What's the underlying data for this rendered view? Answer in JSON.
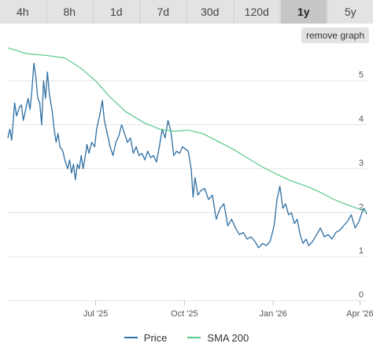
{
  "timeframes": [
    "4h",
    "8h",
    "1d",
    "7d",
    "30d",
    "120d",
    "1y",
    "5y"
  ],
  "active_timeframe": "1y",
  "remove_graph_label": "remove graph",
  "colors": {
    "price": "#2e6fa3",
    "sma": "#59c98b",
    "grid": "#e6e6e6",
    "tab_active": "#c6c6c6"
  },
  "chart_data": {
    "type": "line",
    "x_ticks": [
      {
        "date": "2025-07-01",
        "label": "Jul '25"
      },
      {
        "date": "2025-10-01",
        "label": "Oct '25"
      },
      {
        "date": "2026-01-01",
        "label": "Jan '26"
      },
      {
        "date": "2026-04-01",
        "label": "Apr '26"
      }
    ],
    "xlim": [
      "2025-04-01",
      "2026-04-08"
    ],
    "y_ticks": [
      0,
      1,
      2,
      3,
      4,
      5
    ],
    "ylim": [
      0,
      5.8
    ],
    "grid": true,
    "legend_position": "bottom",
    "series": [
      {
        "name": "Price",
        "points": [
          [
            "2025-04-01",
            3.7
          ],
          [
            "2025-04-03",
            3.9
          ],
          [
            "2025-04-05",
            3.65
          ],
          [
            "2025-04-08",
            4.5
          ],
          [
            "2025-04-10",
            4.2
          ],
          [
            "2025-04-13",
            4.4
          ],
          [
            "2025-04-15",
            4.45
          ],
          [
            "2025-04-17",
            4.1
          ],
          [
            "2025-04-20",
            4.4
          ],
          [
            "2025-04-22",
            4.6
          ],
          [
            "2025-04-24",
            4.35
          ],
          [
            "2025-04-26",
            4.8
          ],
          [
            "2025-04-28",
            5.4
          ],
          [
            "2025-04-30",
            5.1
          ],
          [
            "2025-05-02",
            4.6
          ],
          [
            "2025-05-04",
            4.5
          ],
          [
            "2025-05-06",
            4.0
          ],
          [
            "2025-05-08",
            5.0
          ],
          [
            "2025-05-10",
            4.6
          ],
          [
            "2025-05-12",
            5.2
          ],
          [
            "2025-05-14",
            4.7
          ],
          [
            "2025-05-17",
            4.3
          ],
          [
            "2025-05-19",
            3.9
          ],
          [
            "2025-05-21",
            3.6
          ],
          [
            "2025-05-23",
            3.8
          ],
          [
            "2025-05-25",
            3.5
          ],
          [
            "2025-05-28",
            3.4
          ],
          [
            "2025-05-30",
            3.2
          ],
          [
            "2025-06-02",
            3.0
          ],
          [
            "2025-06-04",
            3.2
          ],
          [
            "2025-06-06",
            2.9
          ],
          [
            "2025-06-08",
            3.1
          ],
          [
            "2025-06-10",
            2.75
          ],
          [
            "2025-06-12",
            3.1
          ],
          [
            "2025-06-14",
            3.0
          ],
          [
            "2025-06-16",
            3.3
          ],
          [
            "2025-06-18",
            3.0
          ],
          [
            "2025-06-20",
            3.25
          ],
          [
            "2025-06-22",
            3.55
          ],
          [
            "2025-06-24",
            3.35
          ],
          [
            "2025-06-27",
            3.6
          ],
          [
            "2025-06-30",
            3.5
          ],
          [
            "2025-07-02",
            3.9
          ],
          [
            "2025-07-05",
            4.2
          ],
          [
            "2025-07-08",
            4.55
          ],
          [
            "2025-07-10",
            4.1
          ],
          [
            "2025-07-13",
            3.8
          ],
          [
            "2025-07-16",
            3.5
          ],
          [
            "2025-07-19",
            3.3
          ],
          [
            "2025-07-22",
            3.6
          ],
          [
            "2025-07-25",
            3.75
          ],
          [
            "2025-07-28",
            4.0
          ],
          [
            "2025-07-31",
            3.8
          ],
          [
            "2025-08-03",
            3.6
          ],
          [
            "2025-08-06",
            3.7
          ],
          [
            "2025-08-09",
            3.35
          ],
          [
            "2025-08-12",
            3.5
          ],
          [
            "2025-08-15",
            3.3
          ],
          [
            "2025-08-18",
            3.35
          ],
          [
            "2025-08-21",
            3.2
          ],
          [
            "2025-08-24",
            3.4
          ],
          [
            "2025-08-27",
            3.25
          ],
          [
            "2025-08-30",
            3.3
          ],
          [
            "2025-09-02",
            3.15
          ],
          [
            "2025-09-05",
            3.5
          ],
          [
            "2025-09-08",
            3.9
          ],
          [
            "2025-09-11",
            3.7
          ],
          [
            "2025-09-14",
            4.1
          ],
          [
            "2025-09-17",
            3.85
          ],
          [
            "2025-09-20",
            3.3
          ],
          [
            "2025-09-23",
            3.4
          ],
          [
            "2025-09-26",
            3.35
          ],
          [
            "2025-09-29",
            3.5
          ],
          [
            "2025-10-02",
            3.45
          ],
          [
            "2025-10-05",
            3.4
          ],
          [
            "2025-10-08",
            3.0
          ],
          [
            "2025-10-10",
            2.35
          ],
          [
            "2025-10-12",
            2.8
          ],
          [
            "2025-10-15",
            2.4
          ],
          [
            "2025-10-18",
            2.5
          ],
          [
            "2025-10-22",
            2.55
          ],
          [
            "2025-10-26",
            2.3
          ],
          [
            "2025-10-30",
            2.4
          ],
          [
            "2025-11-03",
            1.85
          ],
          [
            "2025-11-07",
            2.1
          ],
          [
            "2025-11-11",
            2.2
          ],
          [
            "2025-11-15",
            1.7
          ],
          [
            "2025-11-19",
            1.85
          ],
          [
            "2025-11-23",
            1.65
          ],
          [
            "2025-11-27",
            1.5
          ],
          [
            "2025-12-01",
            1.55
          ],
          [
            "2025-12-05",
            1.4
          ],
          [
            "2025-12-09",
            1.45
          ],
          [
            "2025-12-13",
            1.35
          ],
          [
            "2025-12-17",
            1.2
          ],
          [
            "2025-12-21",
            1.3
          ],
          [
            "2025-12-25",
            1.25
          ],
          [
            "2025-12-29",
            1.35
          ],
          [
            "2026-01-02",
            1.7
          ],
          [
            "2026-01-05",
            2.3
          ],
          [
            "2026-01-08",
            2.6
          ],
          [
            "2026-01-11",
            2.1
          ],
          [
            "2026-01-14",
            2.2
          ],
          [
            "2026-01-17",
            1.95
          ],
          [
            "2026-01-20",
            2.0
          ],
          [
            "2026-01-23",
            1.75
          ],
          [
            "2026-01-26",
            1.85
          ],
          [
            "2026-01-29",
            1.5
          ],
          [
            "2026-02-01",
            1.3
          ],
          [
            "2026-02-04",
            1.4
          ],
          [
            "2026-02-07",
            1.25
          ],
          [
            "2026-02-11",
            1.35
          ],
          [
            "2026-02-15",
            1.5
          ],
          [
            "2026-02-19",
            1.65
          ],
          [
            "2026-02-23",
            1.45
          ],
          [
            "2026-02-27",
            1.5
          ],
          [
            "2026-03-03",
            1.4
          ],
          [
            "2026-03-07",
            1.55
          ],
          [
            "2026-03-11",
            1.6
          ],
          [
            "2026-03-15",
            1.7
          ],
          [
            "2026-03-19",
            1.8
          ],
          [
            "2026-03-23",
            1.95
          ],
          [
            "2026-03-27",
            1.65
          ],
          [
            "2026-03-31",
            1.8
          ],
          [
            "2026-04-03",
            2.0
          ],
          [
            "2026-04-05",
            2.1
          ],
          [
            "2026-04-08",
            1.97
          ]
        ]
      },
      {
        "name": "SMA 200",
        "points": [
          [
            "2025-04-01",
            5.75
          ],
          [
            "2025-04-20",
            5.62
          ],
          [
            "2025-05-10",
            5.58
          ],
          [
            "2025-05-30",
            5.52
          ],
          [
            "2025-06-15",
            5.3
          ],
          [
            "2025-07-01",
            5.0
          ],
          [
            "2025-07-15",
            4.65
          ],
          [
            "2025-08-01",
            4.3
          ],
          [
            "2025-08-20",
            4.05
          ],
          [
            "2025-09-05",
            3.9
          ],
          [
            "2025-09-20",
            3.85
          ],
          [
            "2025-10-05",
            3.88
          ],
          [
            "2025-10-20",
            3.8
          ],
          [
            "2025-11-05",
            3.62
          ],
          [
            "2025-11-20",
            3.45
          ],
          [
            "2025-12-05",
            3.25
          ],
          [
            "2025-12-20",
            3.05
          ],
          [
            "2026-01-05",
            2.87
          ],
          [
            "2026-01-20",
            2.72
          ],
          [
            "2026-02-05",
            2.6
          ],
          [
            "2026-02-20",
            2.45
          ],
          [
            "2026-03-05",
            2.3
          ],
          [
            "2026-03-20",
            2.17
          ],
          [
            "2026-04-08",
            2.02
          ]
        ]
      }
    ]
  }
}
